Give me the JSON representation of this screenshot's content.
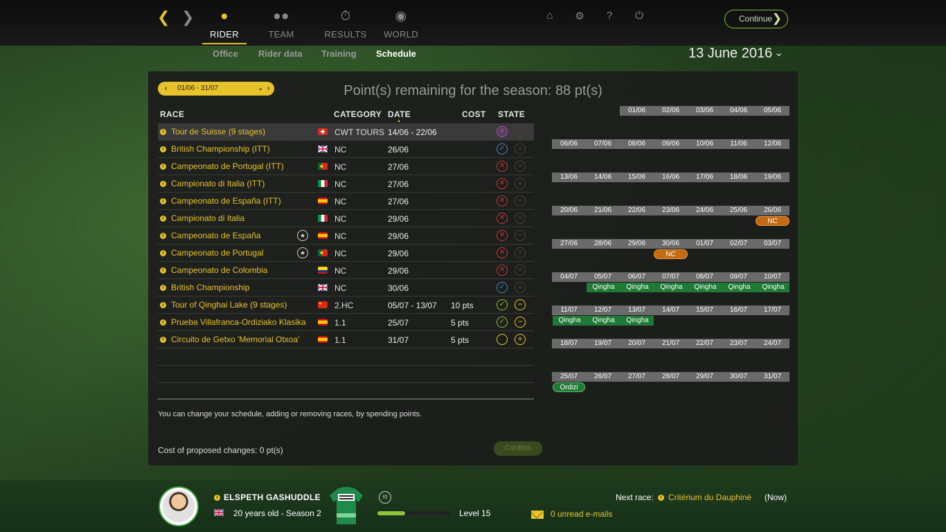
{
  "nav": {
    "back_icon": "chevron-left-icon",
    "forward_icon": "chevron-right-icon",
    "tabs": [
      {
        "label": "RIDER",
        "icon": "person-icon",
        "active": true
      },
      {
        "label": "TEAM",
        "icon": "group-icon",
        "active": false
      },
      {
        "label": "RESULTS",
        "icon": "stopwatch-icon",
        "active": false
      },
      {
        "label": "WORLD",
        "icon": "globe-icon",
        "active": false
      }
    ],
    "subtabs": [
      {
        "label": "Office",
        "active": false
      },
      {
        "label": "Rider data",
        "active": false
      },
      {
        "label": "Training",
        "active": false
      },
      {
        "label": "Schedule",
        "active": true
      }
    ],
    "system_icons": [
      "home-icon",
      "gear-icon",
      "help-icon",
      "power-icon"
    ],
    "continue_label": "Continue",
    "date": "13 June 2016"
  },
  "schedule": {
    "period": "01/06 - 31/07",
    "points_title": "Point(s) remaining for the season: 88 pt(s)",
    "headers": {
      "race": "RACE",
      "category": "CATEGORY",
      "date": "DATE",
      "cost": "COST",
      "state": "STATE"
    },
    "races": [
      {
        "name": "Tour de Suisse (9 stages)",
        "flag": "ch",
        "category": "CWT TOURS",
        "date": "14/06 - 22/06",
        "cost": "",
        "state": "locked",
        "action": "add-dim",
        "star": false
      },
      {
        "name": "British Championship (ITT)",
        "flag": "gb",
        "category": "NC",
        "date": "26/06",
        "cost": "",
        "state": "selected",
        "action": "add-dim",
        "star": false
      },
      {
        "name": "Campeonato de Portugal (ITT)",
        "flag": "pt",
        "category": "NC",
        "date": "27/06",
        "cost": "",
        "state": "unavailable",
        "action": "add-dim",
        "star": false
      },
      {
        "name": "Campionato di Italia (ITT)",
        "flag": "it",
        "category": "NC",
        "date": "27/06",
        "cost": "",
        "state": "unavailable",
        "action": "add-dim",
        "star": false
      },
      {
        "name": "Campeonato de España (ITT)",
        "flag": "es",
        "category": "NC",
        "date": "27/06",
        "cost": "",
        "state": "unavailable",
        "action": "add-dim",
        "star": false
      },
      {
        "name": "Campionato di Italia",
        "flag": "it",
        "category": "NC",
        "date": "29/06",
        "cost": "",
        "state": "unavailable",
        "action": "add-dim",
        "star": false
      },
      {
        "name": "Campeonato de España",
        "flag": "es",
        "category": "NC",
        "date": "29/06",
        "cost": "",
        "state": "unavailable",
        "action": "remove-dim",
        "star": true
      },
      {
        "name": "Campeonato de Portugal",
        "flag": "pt",
        "category": "NC",
        "date": "29/06",
        "cost": "",
        "state": "unavailable",
        "action": "add-dim",
        "star": true
      },
      {
        "name": "Campeonato de Colombia",
        "flag": "co",
        "category": "NC",
        "date": "29/06",
        "cost": "",
        "state": "unavailable",
        "action": "add-dim",
        "star": false
      },
      {
        "name": "British Championship",
        "flag": "gb",
        "category": "NC",
        "date": "30/06",
        "cost": "",
        "state": "selected",
        "action": "add-dim",
        "star": false
      },
      {
        "name": "Tour of Qinghai Lake (9 stages)",
        "flag": "cn",
        "category": "2.HC",
        "date": "05/07 - 13/07",
        "cost": "10 pts",
        "state": "registered",
        "action": "remove",
        "star": false
      },
      {
        "name": "Prueba Villafranca-Ordiziako Klasika",
        "flag": "es",
        "category": "1.1",
        "date": "25/07",
        "cost": "5 pts",
        "state": "registered",
        "action": "remove",
        "star": false
      },
      {
        "name": "Circuito de Getxo 'Memorial Otxoa'",
        "flag": "es",
        "category": "1.1",
        "date": "31/07",
        "cost": "5 pts",
        "state": "empty",
        "action": "add",
        "star": false
      }
    ],
    "note": "You can change your schedule, adding or removing races, by spending points.",
    "cost_note": "Cost of proposed changes: 0 pt(s)",
    "confirm_label": "Confirm"
  },
  "calendar": {
    "weeks": [
      {
        "days": [
          "01/06",
          "02/06",
          "03/06",
          "04/06",
          "05/06"
        ],
        "offset": 2,
        "events": []
      },
      {
        "days": [
          "06/06",
          "07/06",
          "08/06",
          "09/06",
          "10/06",
          "11/06",
          "12/06"
        ],
        "offset": 0,
        "events": []
      },
      {
        "days": [
          "13/06",
          "14/06",
          "15/06",
          "16/06",
          "17/06",
          "18/06",
          "19/06"
        ],
        "offset": 0,
        "events": []
      },
      {
        "days": [
          "20/06",
          "21/06",
          "22/06",
          "23/06",
          "24/06",
          "25/06",
          "26/06"
        ],
        "offset": 0,
        "events": [
          {
            "label": "NC",
            "start": 6,
            "span": 1,
            "color": "orange"
          }
        ]
      },
      {
        "days": [
          "27/06",
          "28/06",
          "29/06",
          "30/06",
          "01/07",
          "02/07",
          "03/07"
        ],
        "offset": 0,
        "events": [
          {
            "label": "NC",
            "start": 3,
            "span": 1,
            "color": "orange"
          }
        ]
      },
      {
        "days": [
          "04/07",
          "05/07",
          "06/07",
          "07/07",
          "08/07",
          "09/07",
          "10/07"
        ],
        "offset": 0,
        "events": [
          {
            "label": "Qingha",
            "start": 1,
            "span": 6,
            "color": "green"
          }
        ]
      },
      {
        "days": [
          "11/07",
          "12/07",
          "13/07",
          "14/07",
          "15/07",
          "16/07",
          "17/07"
        ],
        "offset": 0,
        "events": [
          {
            "label": "Qingha",
            "start": 0,
            "span": 3,
            "color": "green"
          }
        ]
      },
      {
        "days": [
          "18/07",
          "19/07",
          "20/07",
          "21/07",
          "22/07",
          "23/07",
          "24/07"
        ],
        "offset": 0,
        "events": []
      },
      {
        "days": [
          "25/07",
          "26/07",
          "27/07",
          "28/07",
          "29/07",
          "30/07",
          "31/07"
        ],
        "offset": 0,
        "events": [
          {
            "label": "Ordizi",
            "start": 0,
            "span": 1,
            "color": "green-pill"
          }
        ]
      }
    ]
  },
  "rider": {
    "name": "ELSPETH GASHUDDLE",
    "age_season": "20 years old - Season 2",
    "level": "Level 15",
    "xp_fraction": 0.38,
    "next_race_label": "Next race:",
    "next_race": "Critérium du Dauphiné",
    "next_race_when": "(Now)",
    "mail": "0 unread e-mails"
  },
  "colors": {
    "accent": "#e8c22b",
    "green": "#8fc43a",
    "red": "#c83a3a",
    "purple": "#a64cb8",
    "blue": "#4a84c4"
  }
}
